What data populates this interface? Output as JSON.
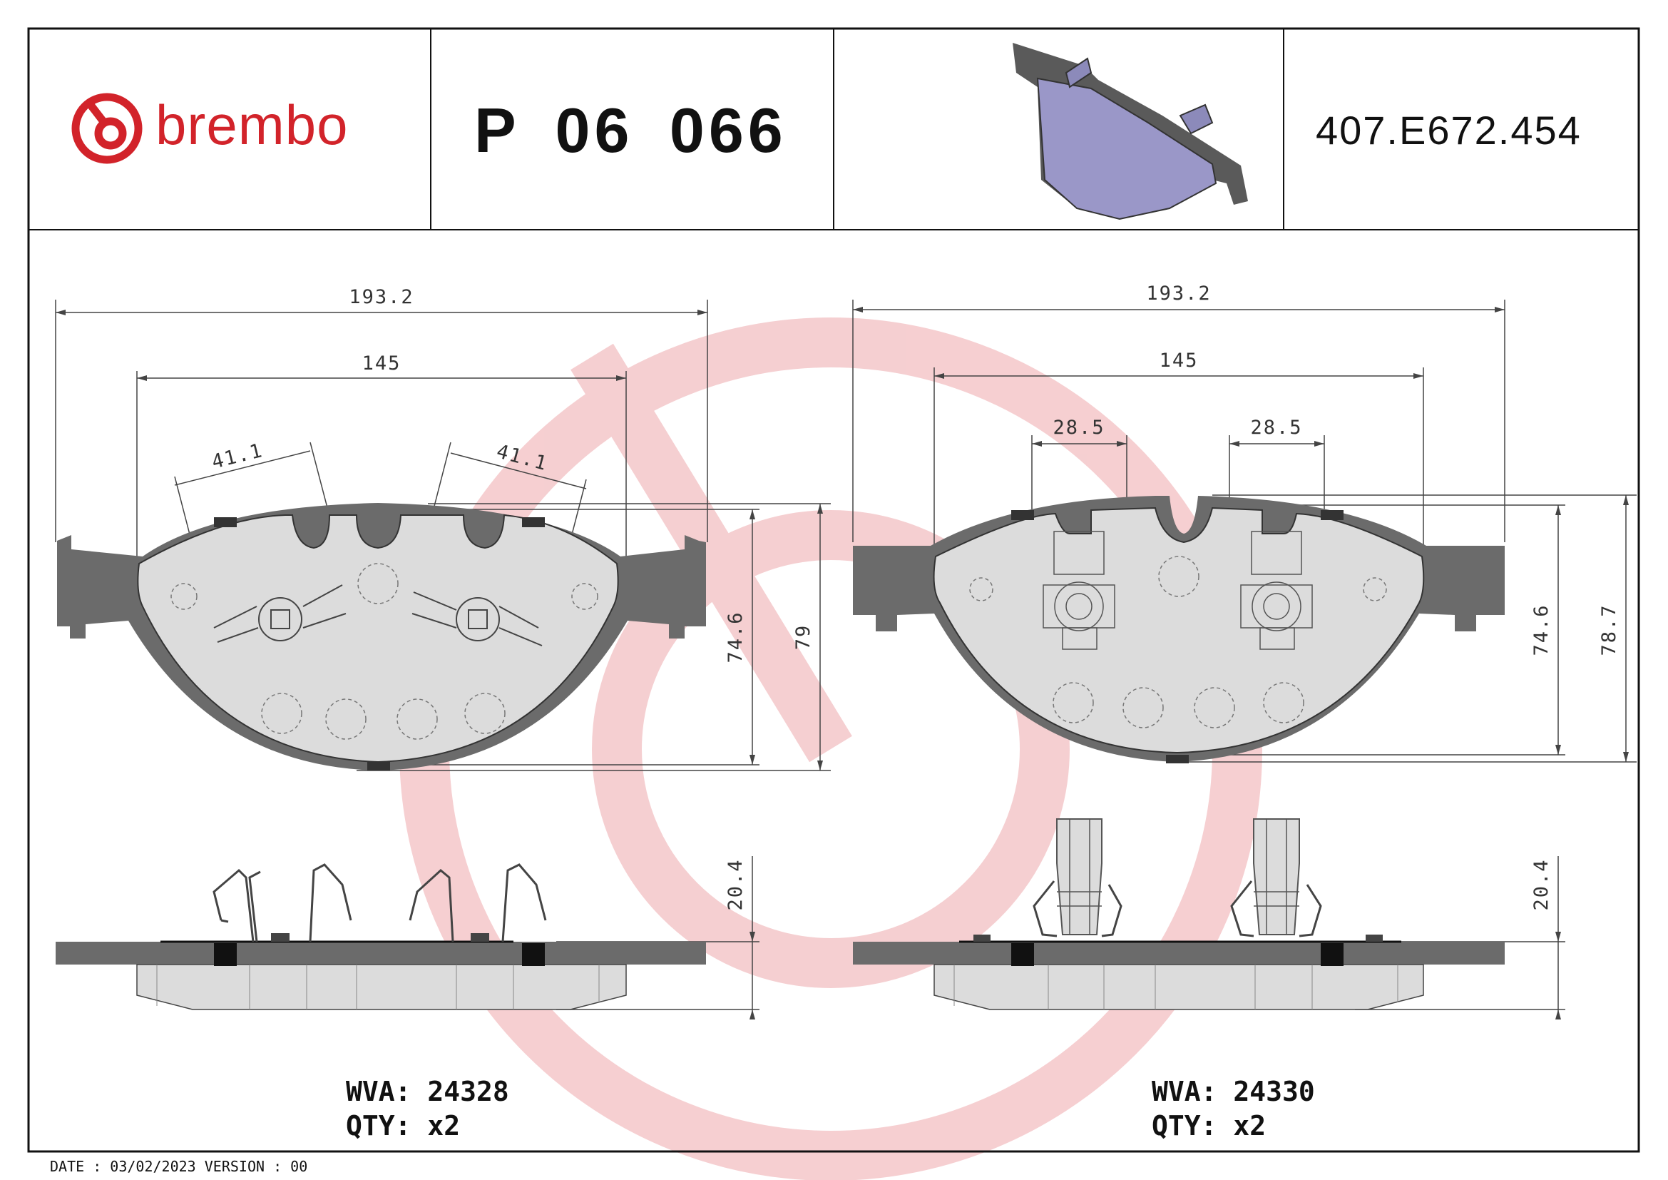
{
  "header": {
    "brand": "brembo",
    "part_number": "P 06 066",
    "code": "407.E672.454"
  },
  "colors": {
    "brand_red": "#d2232a",
    "watermark": "#f4c7c9",
    "backing_plate": "#6b6b6b",
    "friction": "#dcdcdc",
    "thumbnail": "#9a97c8"
  },
  "left_pad": {
    "dim_overall_width": "193.2",
    "dim_friction_width": "145",
    "dim_clip_left": "41.1",
    "dim_clip_right": "41.1",
    "dim_height_inner": "74.6",
    "dim_height_outer": "79",
    "dim_thickness": "20.4",
    "wva_label": "WVA:",
    "wva_value": "24328",
    "qty_label": "QTY:",
    "qty_value": "x2"
  },
  "right_pad": {
    "dim_overall_width": "193.2",
    "dim_friction_width": "145",
    "dim_clip_left": "28.5",
    "dim_clip_right": "28.5",
    "dim_height_inner": "74.6",
    "dim_height_outer": "78.7",
    "dim_thickness": "20.4",
    "wva_label": "WVA:",
    "wva_value": "24330",
    "qty_label": "QTY:",
    "qty_value": "x2"
  },
  "footer": {
    "text": "DATE : 03/02/2023 VERSION : 00"
  }
}
